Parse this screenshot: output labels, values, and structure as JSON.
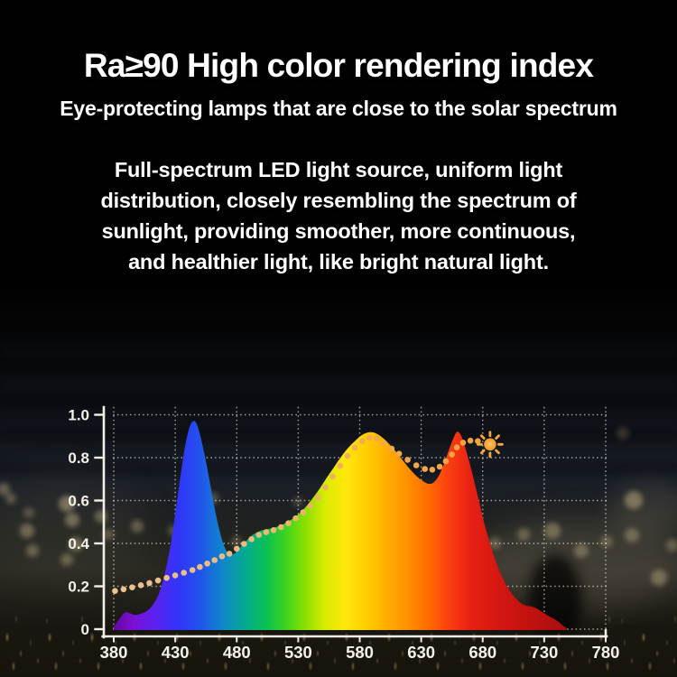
{
  "header": {
    "title": "Ra≥90 High color rendering index",
    "subtitle": "Eye-protecting lamps that are close to the solar spectrum"
  },
  "body": {
    "lines": [
      "Full-spectrum LED light source, uniform light",
      "distribution, closely resembling the spectrum of",
      "sunlight, providing smoother, more continuous,",
      "and healthier light, like bright natural light."
    ]
  },
  "colors": {
    "background": "#010101",
    "text": "#ffffff",
    "axis": "#f2efe4",
    "grid": "rgba(244,242,232,0.6)",
    "tick_label": "#f3f1e8",
    "sun": "#f6a73c"
  },
  "chart_data": {
    "type": "area",
    "title": "",
    "xlabel": "",
    "ylabel": "",
    "xlim": [
      380,
      780
    ],
    "ylim": [
      0,
      1.0
    ],
    "grid": true,
    "legend_position": "none",
    "x_ticks": [
      380,
      430,
      480,
      530,
      580,
      630,
      680,
      730,
      780
    ],
    "y_ticks": [
      0,
      0.2,
      0.4,
      0.6,
      0.8,
      1.0
    ],
    "y_tick_labels": [
      "0",
      "0.2",
      "0.4",
      "0.6",
      "0.8",
      "1.0"
    ],
    "series": [
      {
        "name": "led_full_spectrum",
        "type": "filled_area",
        "fill": "spectrum_gradient",
        "points": [
          [
            380,
            0.012
          ],
          [
            385,
            0.05
          ],
          [
            389,
            0.078
          ],
          [
            393,
            0.075
          ],
          [
            397,
            0.066
          ],
          [
            402,
            0.072
          ],
          [
            407,
            0.085
          ],
          [
            412,
            0.115
          ],
          [
            417,
            0.17
          ],
          [
            422,
            0.27
          ],
          [
            427,
            0.42
          ],
          [
            432,
            0.62
          ],
          [
            437,
            0.82
          ],
          [
            441,
            0.93
          ],
          [
            444,
            0.968
          ],
          [
            447,
            0.962
          ],
          [
            450,
            0.91
          ],
          [
            454,
            0.81
          ],
          [
            458,
            0.69
          ],
          [
            462,
            0.565
          ],
          [
            466,
            0.46
          ],
          [
            469,
            0.4
          ],
          [
            472,
            0.362
          ],
          [
            475,
            0.348
          ],
          [
            479,
            0.356
          ],
          [
            483,
            0.382
          ],
          [
            488,
            0.414
          ],
          [
            493,
            0.44
          ],
          [
            498,
            0.456
          ],
          [
            503,
            0.465
          ],
          [
            508,
            0.47
          ],
          [
            513,
            0.478
          ],
          [
            518,
            0.49
          ],
          [
            523,
            0.506
          ],
          [
            529,
            0.53
          ],
          [
            535,
            0.563
          ],
          [
            541,
            0.605
          ],
          [
            547,
            0.652
          ],
          [
            553,
            0.705
          ],
          [
            559,
            0.755
          ],
          [
            565,
            0.805
          ],
          [
            571,
            0.848
          ],
          [
            577,
            0.882
          ],
          [
            582,
            0.906
          ],
          [
            587,
            0.918
          ],
          [
            592,
            0.916
          ],
          [
            597,
            0.9
          ],
          [
            602,
            0.875
          ],
          [
            608,
            0.838
          ],
          [
            614,
            0.795
          ],
          [
            620,
            0.752
          ],
          [
            626,
            0.715
          ],
          [
            631,
            0.692
          ],
          [
            636,
            0.678
          ],
          [
            640,
            0.684
          ],
          [
            644,
            0.712
          ],
          [
            648,
            0.762
          ],
          [
            652,
            0.828
          ],
          [
            656,
            0.888
          ],
          [
            659,
            0.92
          ],
          [
            662,
            0.908
          ],
          [
            665,
            0.862
          ],
          [
            669,
            0.782
          ],
          [
            673,
            0.692
          ],
          [
            677,
            0.596
          ],
          [
            681,
            0.5
          ],
          [
            686,
            0.398
          ],
          [
            691,
            0.31
          ],
          [
            696,
            0.242
          ],
          [
            701,
            0.188
          ],
          [
            707,
            0.142
          ],
          [
            713,
            0.115
          ],
          [
            719,
            0.106
          ],
          [
            724,
            0.096
          ],
          [
            729,
            0.078
          ],
          [
            734,
            0.06
          ],
          [
            738,
            0.048
          ],
          [
            742,
            0.033
          ],
          [
            745,
            0.018
          ],
          [
            748,
            0.006
          ]
        ]
      },
      {
        "name": "solar_reference",
        "type": "dotted_line",
        "marker": "dot",
        "points": [
          [
            381,
            0.178
          ],
          [
            388,
            0.186
          ],
          [
            395,
            0.195
          ],
          [
            402,
            0.205
          ],
          [
            409,
            0.215
          ],
          [
            416,
            0.227
          ],
          [
            423,
            0.239
          ],
          [
            430,
            0.251
          ],
          [
            437,
            0.263
          ],
          [
            444,
            0.276
          ],
          [
            450,
            0.29
          ],
          [
            456,
            0.306
          ],
          [
            462,
            0.322
          ],
          [
            468,
            0.34
          ],
          [
            474,
            0.352
          ],
          [
            480,
            0.375
          ],
          [
            486,
            0.398
          ],
          [
            492,
            0.42
          ],
          [
            498,
            0.44
          ],
          [
            504,
            0.452
          ],
          [
            510,
            0.462
          ],
          [
            516,
            0.476
          ],
          [
            522,
            0.494
          ],
          [
            528,
            0.517
          ],
          [
            534,
            0.545
          ],
          [
            540,
            0.575
          ],
          [
            546,
            0.615
          ],
          [
            552,
            0.662
          ],
          [
            558,
            0.712
          ],
          [
            564,
            0.762
          ],
          [
            570,
            0.808
          ],
          [
            576,
            0.846
          ],
          [
            582,
            0.876
          ],
          [
            588,
            0.893
          ],
          [
            594,
            0.889
          ],
          [
            600,
            0.868
          ],
          [
            606,
            0.842
          ],
          [
            612,
            0.818
          ],
          [
            619,
            0.79
          ],
          [
            626,
            0.764
          ],
          [
            633,
            0.747
          ],
          [
            639,
            0.744
          ],
          [
            645,
            0.758
          ],
          [
            650,
            0.783
          ],
          [
            655,
            0.815
          ],
          [
            659,
            0.848
          ],
          [
            664,
            0.87
          ],
          [
            670,
            0.879
          ],
          [
            676,
            0.877
          ]
        ]
      }
    ],
    "annotations": [
      {
        "type": "sun-icon",
        "x": 686,
        "y": 0.862
      }
    ],
    "spectrum_gradient": [
      [
        0.0,
        "#63099c"
      ],
      [
        0.04,
        "#7b10d4"
      ],
      [
        0.085,
        "#5b22f0"
      ],
      [
        0.13,
        "#3134f8"
      ],
      [
        0.175,
        "#2253ec"
      ],
      [
        0.22,
        "#0f85cd"
      ],
      [
        0.265,
        "#06a895"
      ],
      [
        0.31,
        "#0ac153"
      ],
      [
        0.35,
        "#3ed41f"
      ],
      [
        0.39,
        "#8ce000"
      ],
      [
        0.43,
        "#d9ec00"
      ],
      [
        0.47,
        "#ffe70a"
      ],
      [
        0.51,
        "#ffd000"
      ],
      [
        0.55,
        "#ffb100"
      ],
      [
        0.595,
        "#ff9100"
      ],
      [
        0.64,
        "#ff6c00"
      ],
      [
        0.682,
        "#fb3e11"
      ],
      [
        0.725,
        "#e82113"
      ],
      [
        0.785,
        "#d41611"
      ],
      [
        0.865,
        "#bb1110"
      ],
      [
        0.945,
        "#9e0e0e"
      ]
    ],
    "dot_gradient": [
      [
        0.0,
        "#eac392"
      ],
      [
        0.3,
        "#eeb878"
      ],
      [
        0.55,
        "#f2a94e"
      ],
      [
        0.8,
        "#f5a03a"
      ],
      [
        1.0,
        "#f59f36"
      ]
    ]
  }
}
